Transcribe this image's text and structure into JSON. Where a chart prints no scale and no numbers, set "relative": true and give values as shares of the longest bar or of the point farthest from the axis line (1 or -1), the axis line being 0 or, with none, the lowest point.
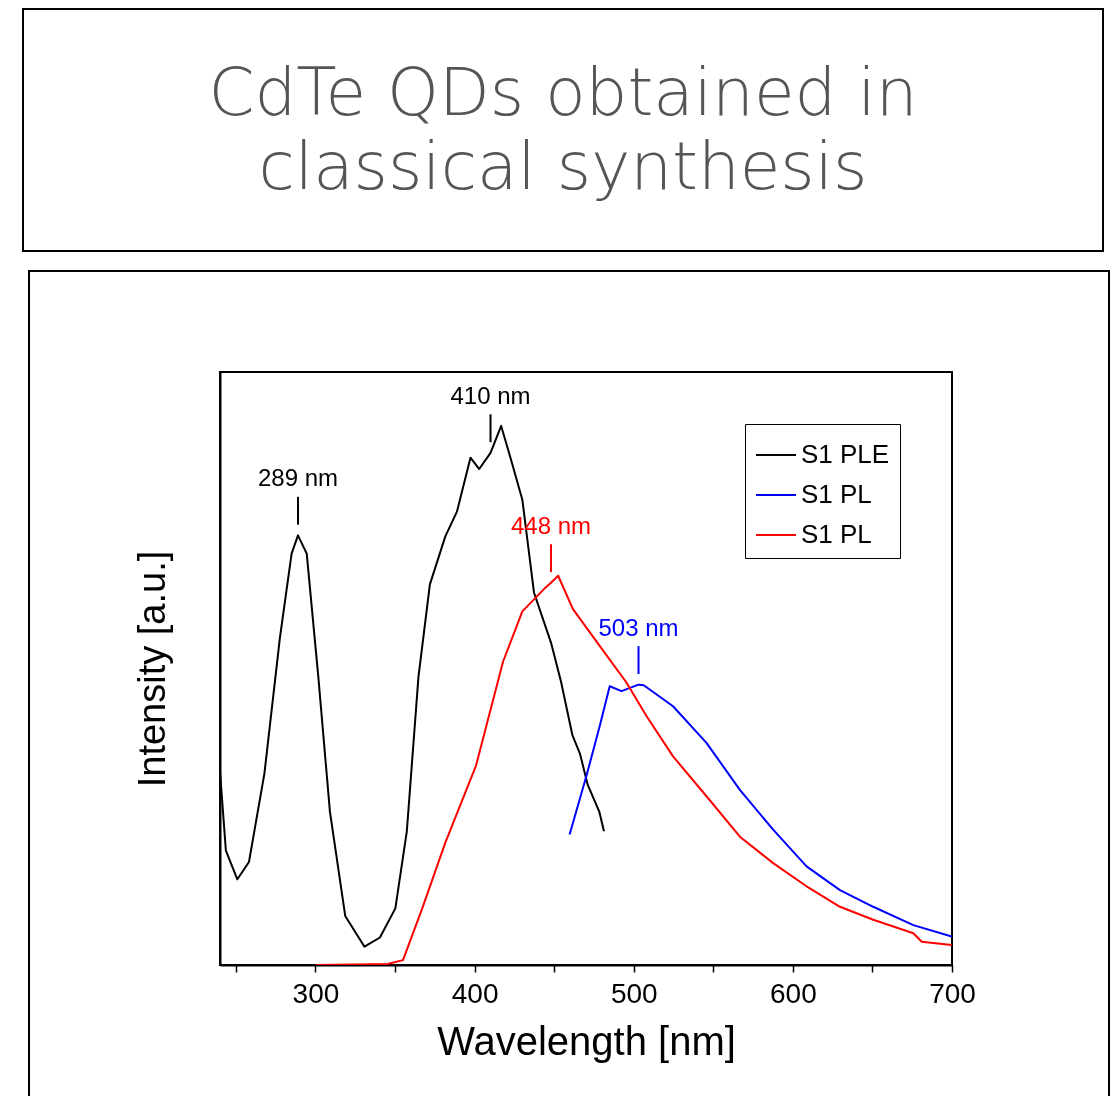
{
  "chart_data": {
    "type": "line",
    "title": "CdTe QDs obtained in classical synthesis",
    "xlabel": "Wavelength [nm]",
    "ylabel": "Intensity [a.u.]",
    "relative": true,
    "xlim": [
      240,
      700
    ],
    "xticks": [
      {
        "value": 250,
        "label": null
      },
      300,
      {
        "value": 350,
        "label": null
      },
      400,
      {
        "value": 450,
        "label": null
      },
      500,
      {
        "value": 550,
        "label": null
      },
      600,
      {
        "value": 650,
        "label": null
      },
      700
    ],
    "legend": "top right",
    "grid": false,
    "line_style": "solid",
    "marker": "none",
    "annotations": [
      {
        "text": "289 nm",
        "x": 289,
        "y": 0.797
      },
      {
        "text": "410 nm",
        "x": 410,
        "y": 0.95
      },
      {
        "text": "448 nm",
        "x": 448,
        "y": 0.709
      },
      {
        "text": "503 nm",
        "x": 503,
        "y": 0.52
      }
    ],
    "series": [
      {
        "name": "S1 PLE",
        "color": "#000000",
        "x": [
          240.1,
          243.7,
          250.9,
          258.2,
          267.9,
          277.6,
          285,
          289,
          294.5,
          301.8,
          309.1,
          318.7,
          330.8,
          340.5,
          350.2,
          357.4,
          364.7,
          371.9,
          381.6,
          388.9,
          397.4,
          402.9,
          410,
          416.7,
          422.8,
          430,
          437.3,
          448,
          454.2,
          461.4,
          466.3,
          471.1,
          478.4,
          481.3
        ],
        "values": [
          0.355,
          0.212,
          0.159,
          0.191,
          0.355,
          0.606,
          0.763,
          0.797,
          0.763,
          0.534,
          0.284,
          0.091,
          0.034,
          0.051,
          0.105,
          0.248,
          0.534,
          0.706,
          0.795,
          0.841,
          0.941,
          0.92,
          0.95,
          1,
          0.938,
          0.863,
          0.691,
          0.598,
          0.527,
          0.427,
          0.391,
          0.334,
          0.284,
          0.248
        ]
      },
      {
        "name": "S1 PL",
        "color": "#0000ff",
        "x": [
          459.7,
          470.2,
          478.6,
          484.9,
          492.3,
          503,
          506.3,
          524.7,
          545.7,
          566.7,
          587.6,
          608.6,
          629.6,
          650.5,
          675.7,
          699.8
        ],
        "values": [
          0.242,
          0.35,
          0.443,
          0.517,
          0.508,
          0.52,
          0.519,
          0.48,
          0.412,
          0.325,
          0.251,
          0.183,
          0.139,
          0.108,
          0.074,
          0.053
        ]
      },
      {
        "name": "S1 PL",
        "color": "#ff0000",
        "x": [
          300.6,
          345.3,
          355,
          367.1,
          381.6,
          400.9,
          417.9,
          430,
          444.5,
          448,
          452.5,
          461.8,
          478.6,
          495.4,
          508,
          524.7,
          545.7,
          566.7,
          587.6,
          608.6,
          629.6,
          650.5,
          675.7,
          681,
          699.8
        ],
        "values": [
          0,
          0.002,
          0.009,
          0.105,
          0.227,
          0.37,
          0.563,
          0.656,
          0.7,
          0.709,
          0.722,
          0.66,
          0.592,
          0.524,
          0.462,
          0.387,
          0.313,
          0.238,
          0.189,
          0.146,
          0.108,
          0.084,
          0.059,
          0.043,
          0.037
        ]
      }
    ]
  }
}
